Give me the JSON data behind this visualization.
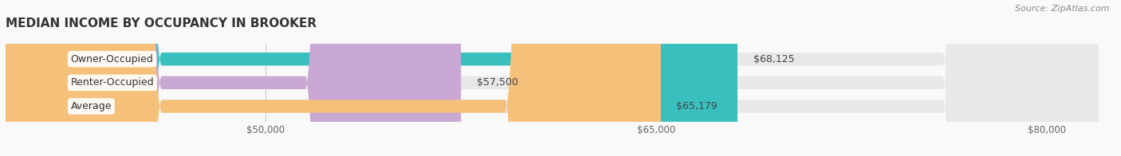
{
  "title": "MEDIAN INCOME BY OCCUPANCY IN BROOKER",
  "categories": [
    "Owner-Occupied",
    "Renter-Occupied",
    "Average"
  ],
  "values": [
    68125,
    57500,
    65179
  ],
  "bar_colors": [
    "#3abfbf",
    "#c9a8d4",
    "#f5c07a"
  ],
  "bar_bg_color": "#e8e8e8",
  "value_labels": [
    "$68,125",
    "$57,500",
    "$65,179"
  ],
  "xlim": [
    40000,
    82000
  ],
  "xticks": [
    50000,
    65000,
    80000
  ],
  "xtick_labels": [
    "$50,000",
    "$65,000",
    "$80,000"
  ],
  "source_text": "Source: ZipAtlas.com",
  "title_fontsize": 11,
  "label_fontsize": 9,
  "tick_fontsize": 8.5,
  "source_fontsize": 8,
  "bar_height": 0.55,
  "background_color": "#f9f9f9"
}
